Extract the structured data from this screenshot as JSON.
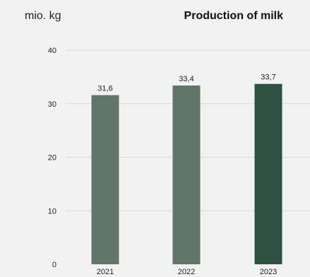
{
  "chart_data": {
    "type": "bar",
    "title": "Production of milk",
    "unit": "mio. kg",
    "categories": [
      "2021",
      "2022",
      "2023"
    ],
    "values": [
      31.6,
      33.4,
      33.7
    ],
    "value_labels": [
      "31,6",
      "33,4",
      "33,7"
    ],
    "ylim": [
      0,
      40
    ],
    "yticks": [
      0,
      10,
      20,
      30,
      40
    ],
    "ytick_labels": [
      "0",
      "10",
      "20",
      "30",
      "40"
    ],
    "colors": [
      "#62756a",
      "#62756a",
      "#2f5144"
    ],
    "grid": true
  }
}
